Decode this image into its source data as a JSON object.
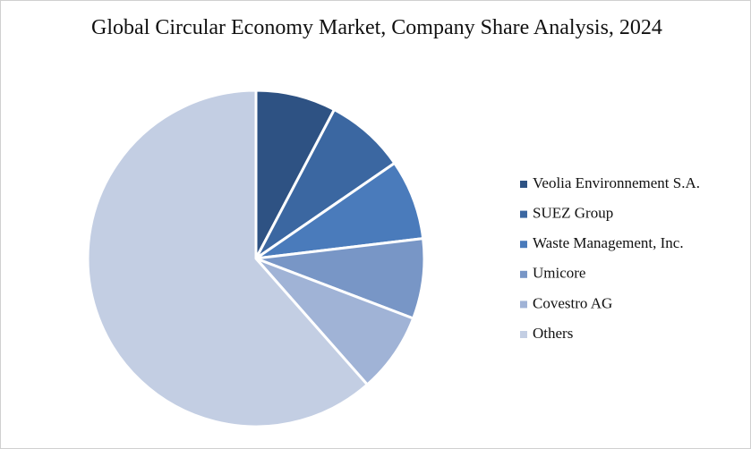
{
  "chart_data": {
    "type": "pie",
    "title": "Global Circular Economy Market, Company Share Analysis, 2024",
    "categories": [
      "Veolia Environnement S.A.",
      "SUEZ Group",
      "Waste Management, Inc.",
      "Umicore",
      "Covestro AG",
      "Others"
    ],
    "values": [
      7.7,
      7.7,
      7.7,
      7.7,
      7.7,
      61.5
    ],
    "colors": [
      "#2e5283",
      "#3b67a1",
      "#4a7bbb",
      "#7896c6",
      "#a0b3d6",
      "#c3cee3"
    ],
    "legend": "right"
  }
}
